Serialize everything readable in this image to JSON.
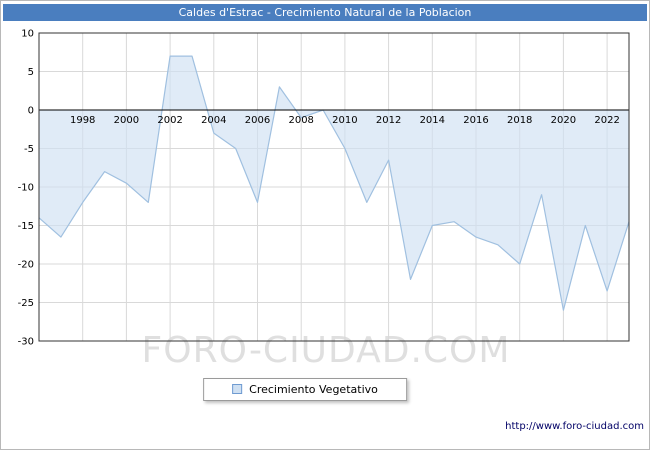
{
  "header": {
    "title": "Caldes d'Estrac - Crecimiento Natural de la Poblacion",
    "bg_color": "#4a7ebf"
  },
  "chart_data": {
    "type": "area",
    "title": "Caldes d'Estrac - Crecimiento Natural de la Poblacion",
    "x": [
      1996,
      1997,
      1998,
      1999,
      2000,
      2001,
      2002,
      2003,
      2004,
      2005,
      2006,
      2007,
      2008,
      2009,
      2010,
      2011,
      2012,
      2013,
      2014,
      2015,
      2016,
      2017,
      2018,
      2019,
      2020,
      2021,
      2022,
      2023
    ],
    "series": [
      {
        "name": "Crecimiento Vegetativo",
        "values": [
          -14,
          -16.5,
          -12,
          -8,
          -9.5,
          -12,
          7,
          7,
          -3,
          -5,
          -12,
          3,
          -1,
          0,
          -5,
          -12,
          -6.5,
          -22,
          -15,
          -14.5,
          -16.5,
          -17.5,
          -20,
          -11,
          -26,
          -15,
          -23.5,
          -14.5
        ]
      }
    ],
    "ylim": [
      -30,
      10
    ],
    "yticks": [
      10,
      5,
      0,
      -5,
      -10,
      -15,
      -20,
      -25,
      -30
    ],
    "xticks": [
      1998,
      2000,
      2002,
      2004,
      2006,
      2008,
      2010,
      2012,
      2014,
      2016,
      2018,
      2020,
      2022
    ],
    "baseline": 0,
    "grid": true,
    "legend_position": "bottom",
    "colors": {
      "line": "#a0c0e0",
      "fill": "#cfe0f2",
      "grid": "#d9d9d9",
      "zero_axis": "#000000",
      "plot_border": "#333333"
    }
  },
  "legend": {
    "label": "Crecimiento Vegetativo"
  },
  "watermark": {
    "text": "FORO-CIUDAD.COM"
  },
  "footer": {
    "url": "http://www.foro-ciudad.com"
  }
}
